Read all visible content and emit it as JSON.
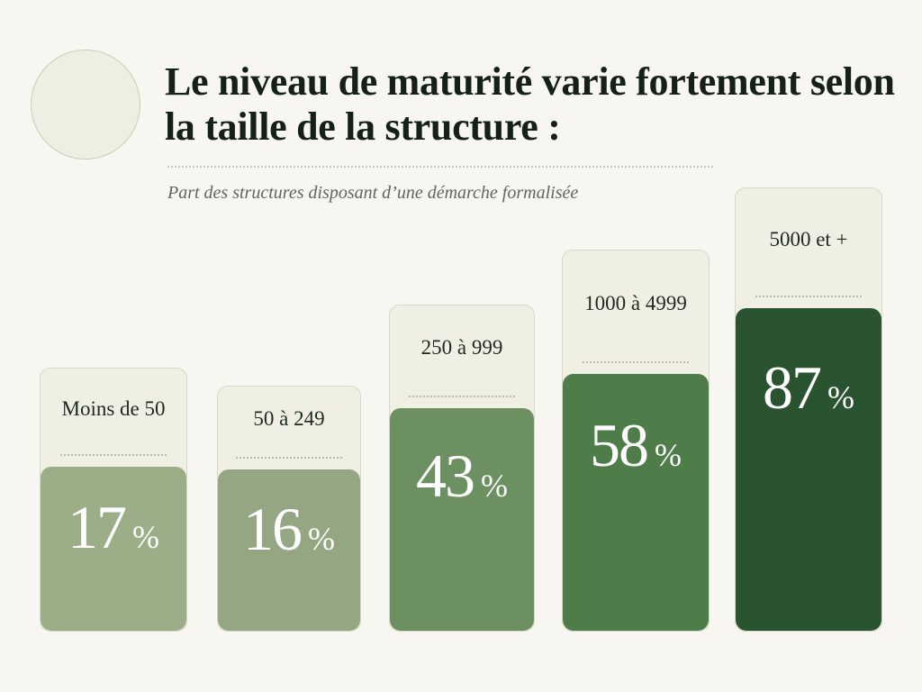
{
  "title": "Le niveau de maturité varie fortement selon la taille de la structure :",
  "subtitle": "Part des structures disposant d’une démarche formalisée",
  "chart_data": {
    "type": "bar",
    "title": "Le niveau de maturité varie fortement selon la taille de la structure :",
    "subtitle": "Part des structures disposant d’une démarche formalisée",
    "categories": [
      "Moins de 50",
      "50 à 249",
      "250 à 999",
      "1000 à 4999",
      "5000 et +"
    ],
    "values": [
      17,
      16,
      43,
      58,
      87
    ],
    "unit": "%",
    "bar_colors": [
      "#9cae88",
      "#95a782",
      "#6c9062",
      "#4e7d4a",
      "#2a5430"
    ],
    "data_labels": true,
    "grid": false,
    "legend": "none"
  }
}
